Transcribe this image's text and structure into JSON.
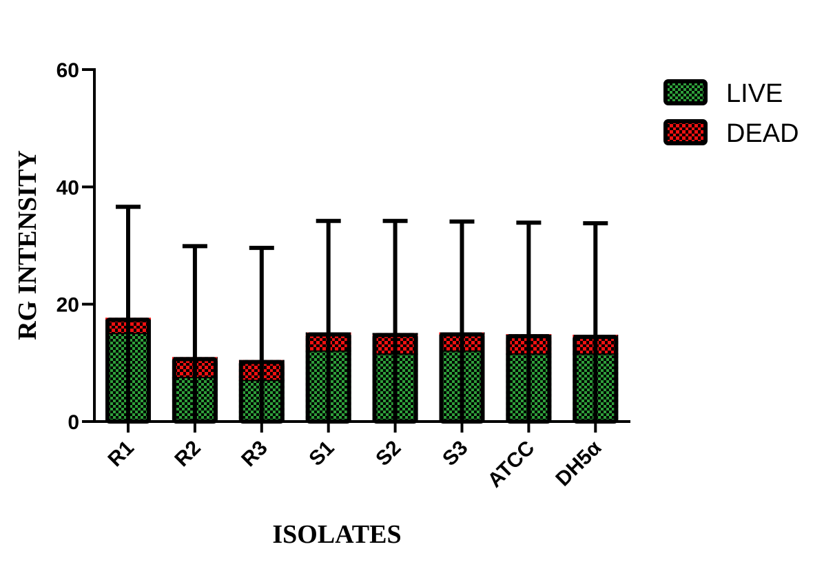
{
  "chart_data": {
    "type": "bar",
    "stacked": true,
    "title": "",
    "xlabel": "ISOLATES",
    "ylabel": "RG INTENSITY",
    "ylim": [
      0,
      60
    ],
    "yticks": [
      0,
      20,
      40,
      60
    ],
    "grid": false,
    "legend_position": "top-right",
    "categories": [
      "R1",
      "R2",
      "R3",
      "S1",
      "S2",
      "S3",
      "ATCC",
      "DH5α"
    ],
    "series": [
      {
        "name": "LIVE",
        "color": "#2e9e3a",
        "pattern": "checkered",
        "values": [
          15.0,
          7.5,
          7.0,
          12.0,
          11.5,
          12.0,
          11.5,
          11.5
        ]
      },
      {
        "name": "DEAD",
        "color": "#ee1111",
        "pattern": "checkered",
        "values": [
          2.7,
          3.5,
          3.5,
          3.2,
          3.6,
          3.2,
          3.4,
          3.3
        ]
      }
    ],
    "error_bars_upper": [
      36.6,
      29.9,
      29.6,
      34.2,
      34.2,
      34.1,
      33.9,
      33.8
    ]
  }
}
